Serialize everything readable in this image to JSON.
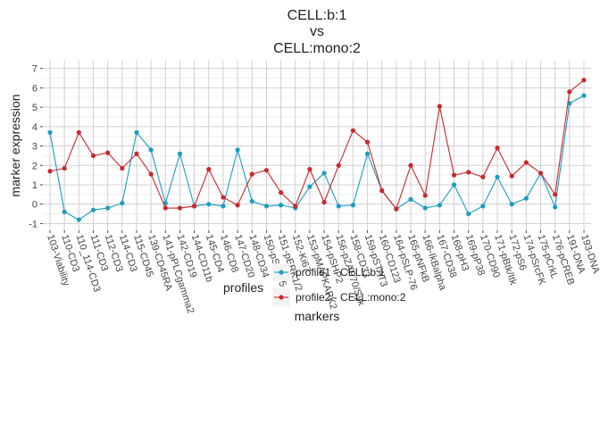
{
  "chart_data": {
    "type": "line",
    "title": [
      "CELL:b:1",
      "vs",
      "CELL:mono:2"
    ],
    "xlabel": "markers",
    "ylabel": "marker expression",
    "legend_title": "profiles",
    "categories": [
      "103-Viability",
      "110-CD3",
      "110_114-CD3",
      "111-CD3",
      "112-CD3",
      "114-CD3",
      "115-CD45",
      "139-CD45RA",
      "141-pPLCgamma2",
      "142-CD19",
      "144-CD11b",
      "145-CD4",
      "146-CD8",
      "147-CD20",
      "148-CD34",
      "150-pSTAT5",
      "151-pERK1/2",
      "152-Ki67",
      "153-pMAPKAPK2",
      "154-pSHP2",
      "156-pZAP70/Syk",
      "158-CD33",
      "159-pSTAT3",
      "160-CD123",
      "164-pSLP-76",
      "165-pNFkB",
      "166-IkBalpha",
      "167-CD38",
      "168-pH3",
      "169-pP38",
      "170-CD90",
      "171-pBtk/Itk",
      "172-pS6",
      "174-pSrcFK",
      "175-pCrkL",
      "176-pCREB",
      "191-DNA",
      "193-DNA"
    ],
    "series": [
      {
        "name": "profile1 - CELL:b:1",
        "color": "#1b9dc1",
        "values": [
          3.7,
          -0.4,
          -0.8,
          -0.3,
          -0.2,
          0.05,
          3.7,
          2.8,
          0.05,
          2.6,
          -0.1,
          0.0,
          -0.1,
          2.8,
          0.15,
          -0.1,
          -0.05,
          -0.2,
          0.9,
          1.6,
          -0.1,
          -0.05,
          2.6,
          0.7,
          -0.25,
          0.25,
          -0.2,
          -0.05,
          1.0,
          -0.5,
          -0.1,
          1.4,
          0.0,
          0.3,
          1.6,
          -0.15,
          5.2,
          5.6
        ]
      },
      {
        "name": "profile2 - CELL:mono:2",
        "color": "#c8282e",
        "values": [
          1.7,
          1.85,
          3.7,
          2.5,
          2.65,
          1.85,
          2.6,
          1.55,
          -0.2,
          -0.2,
          -0.1,
          1.8,
          0.35,
          -0.05,
          1.55,
          1.75,
          0.6,
          -0.1,
          1.8,
          0.1,
          2.0,
          3.8,
          3.2,
          0.7,
          -0.25,
          2.0,
          0.45,
          5.05,
          1.5,
          1.65,
          1.4,
          2.9,
          1.45,
          2.15,
          1.6,
          0.5,
          5.8,
          6.4
        ]
      }
    ],
    "ylim": [
      -1.35,
      7.4
    ],
    "yticks": [
      -1,
      0,
      1,
      2,
      3,
      4,
      5,
      6,
      7
    ],
    "grid": true
  }
}
